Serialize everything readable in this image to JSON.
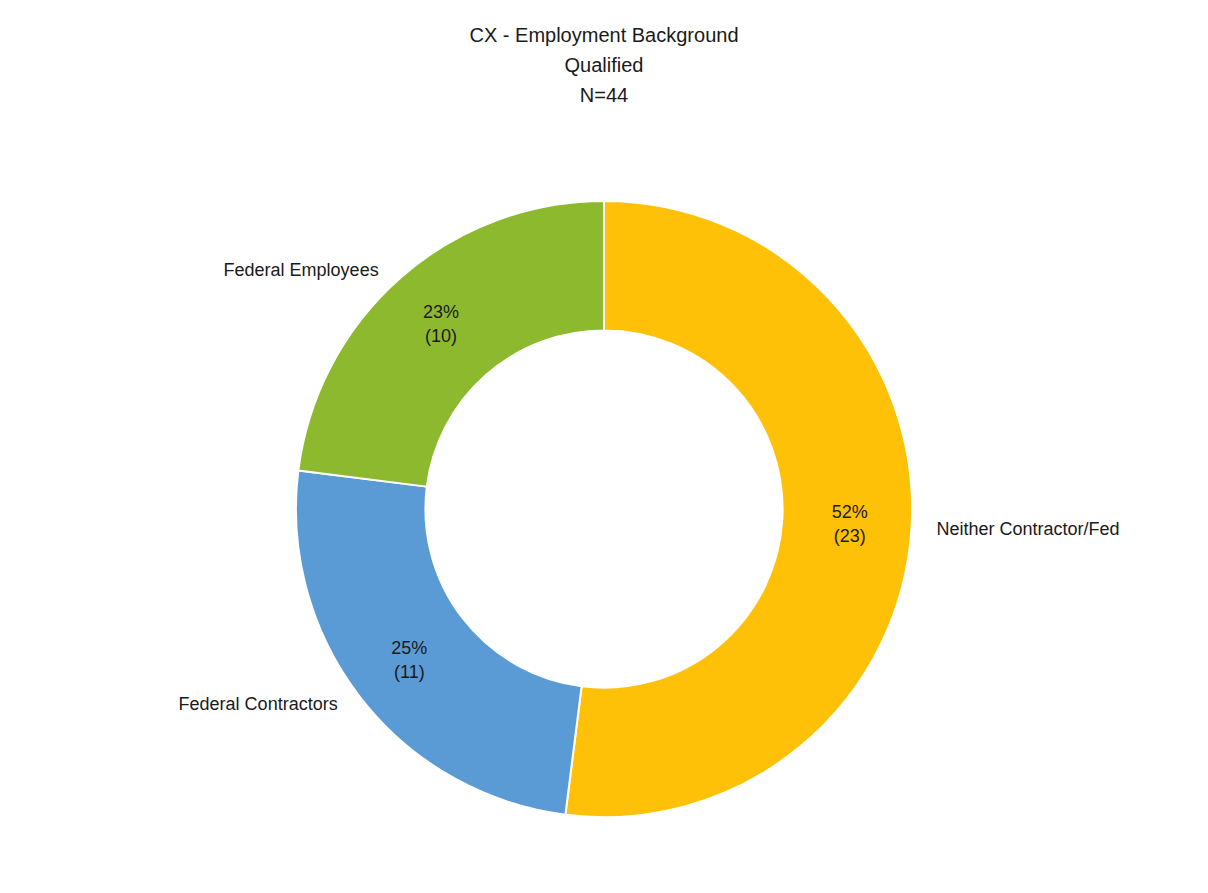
{
  "chart_data": {
    "type": "donut",
    "title": "CX - Employment Background\nQualified\nN=44",
    "categories": [
      "Neither Contractor/Fed",
      "Federal Contractors",
      "Federal Employees"
    ],
    "values": [
      52,
      25,
      23
    ],
    "value_labels": [
      "52%\n(23)",
      "25%\n(11)",
      "23%\n(10)"
    ],
    "data_labels": true,
    "colors": [
      "#FFC107",
      "#5B9BD5",
      "#8DB92E"
    ]
  }
}
